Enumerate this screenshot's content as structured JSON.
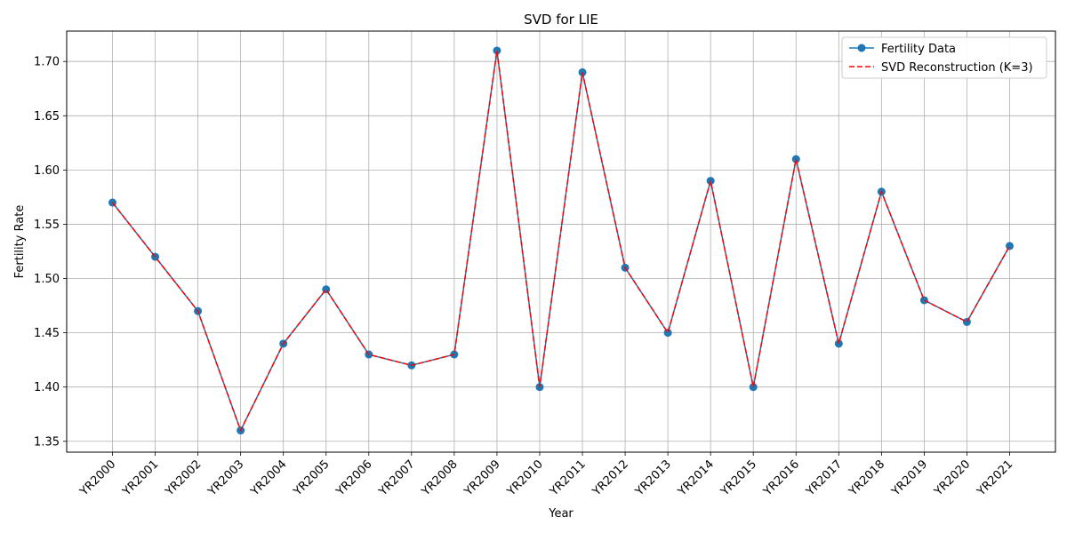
{
  "chart_data": {
    "type": "line",
    "title": "SVD for LIE",
    "xlabel": "Year",
    "ylabel": "Fertility Rate",
    "categories": [
      "YR2000",
      "YR2001",
      "YR2002",
      "YR2003",
      "YR2004",
      "YR2005",
      "YR2006",
      "YR2007",
      "YR2008",
      "YR2009",
      "YR2010",
      "YR2011",
      "YR2012",
      "YR2013",
      "YR2014",
      "YR2015",
      "YR2016",
      "YR2017",
      "YR2018",
      "YR2019",
      "YR2020",
      "YR2021"
    ],
    "series": [
      {
        "name": "Fertility Data",
        "color": "#1f77b4",
        "style": "solid-with-circle-markers",
        "values": [
          1.57,
          1.52,
          1.47,
          1.36,
          1.44,
          1.49,
          1.43,
          1.42,
          1.43,
          1.71,
          1.4,
          1.69,
          1.51,
          1.45,
          1.59,
          1.4,
          1.61,
          1.44,
          1.58,
          1.48,
          1.46,
          1.53
        ]
      },
      {
        "name": "SVD Reconstruction (K=3)",
        "color": "#ff0000",
        "style": "dashed",
        "values": [
          1.57,
          1.52,
          1.47,
          1.36,
          1.44,
          1.49,
          1.43,
          1.42,
          1.43,
          1.71,
          1.4,
          1.69,
          1.51,
          1.45,
          1.59,
          1.4,
          1.61,
          1.44,
          1.58,
          1.48,
          1.46,
          1.53
        ]
      }
    ],
    "ylim": [
      1.34,
      1.728
    ],
    "yticks": [
      "1.35",
      "1.40",
      "1.45",
      "1.50",
      "1.55",
      "1.60",
      "1.65",
      "1.70"
    ],
    "grid": true,
    "legend_position": "top-right"
  }
}
